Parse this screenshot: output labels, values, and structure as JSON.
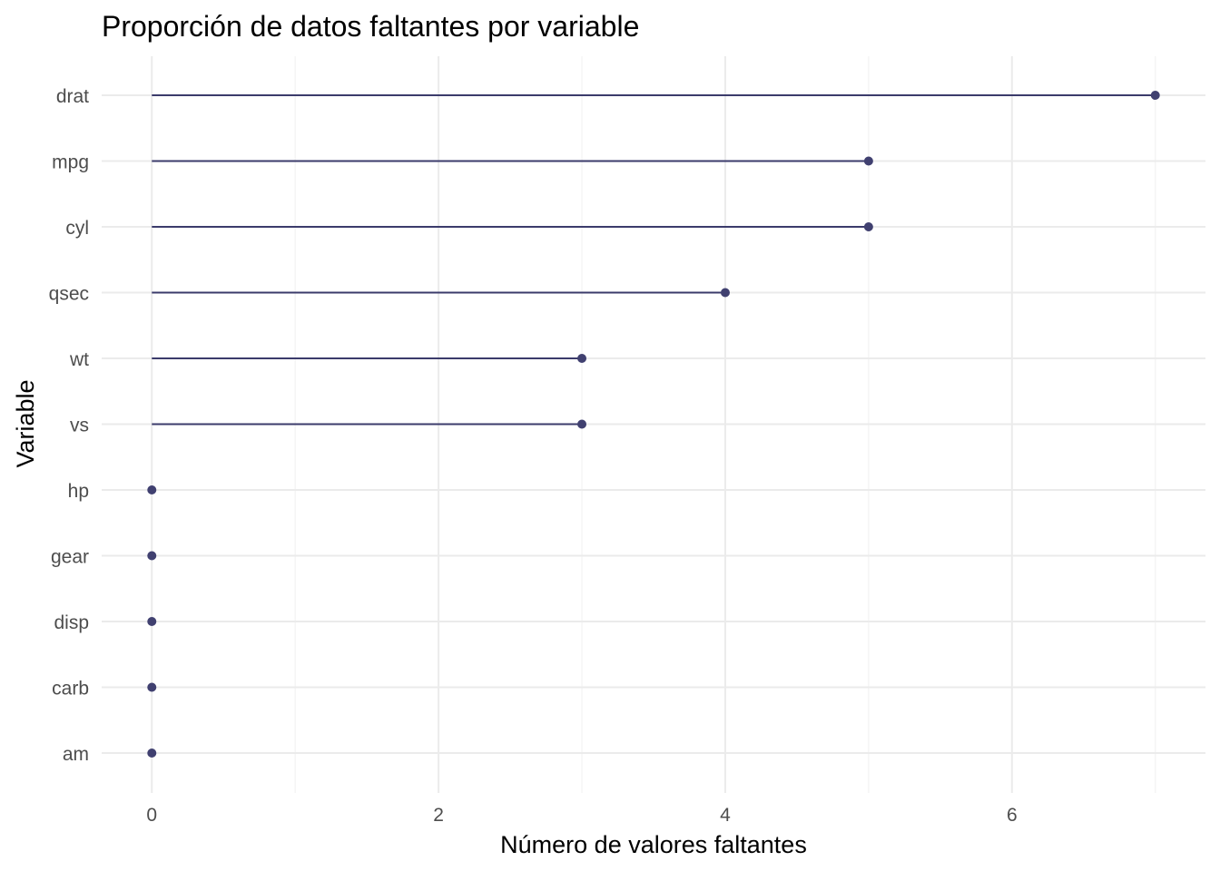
{
  "chart_data": {
    "type": "lollipop",
    "title": "Proporción de datos faltantes por variable",
    "xlabel": "Número de valores faltantes",
    "ylabel": "Variable",
    "categories": [
      "drat",
      "mpg",
      "cyl",
      "qsec",
      "wt",
      "vs",
      "hp",
      "gear",
      "disp",
      "carb",
      "am"
    ],
    "values": [
      7,
      5,
      5,
      4,
      3,
      3,
      0,
      0,
      0,
      0,
      0
    ],
    "xlim": [
      -0.35,
      7.35
    ],
    "x_ticks": [
      0,
      2,
      4,
      6
    ],
    "x_minor_ticks": [
      1,
      3,
      5,
      7
    ],
    "grid": true,
    "legend": "none",
    "colors": {
      "segment": "#3b3b6b",
      "point": "#404070",
      "grid_major": "#ebebeb",
      "grid_minor": "#f3f3f3",
      "tick_text": "#4d4d4d",
      "title_text": "#000000"
    }
  }
}
